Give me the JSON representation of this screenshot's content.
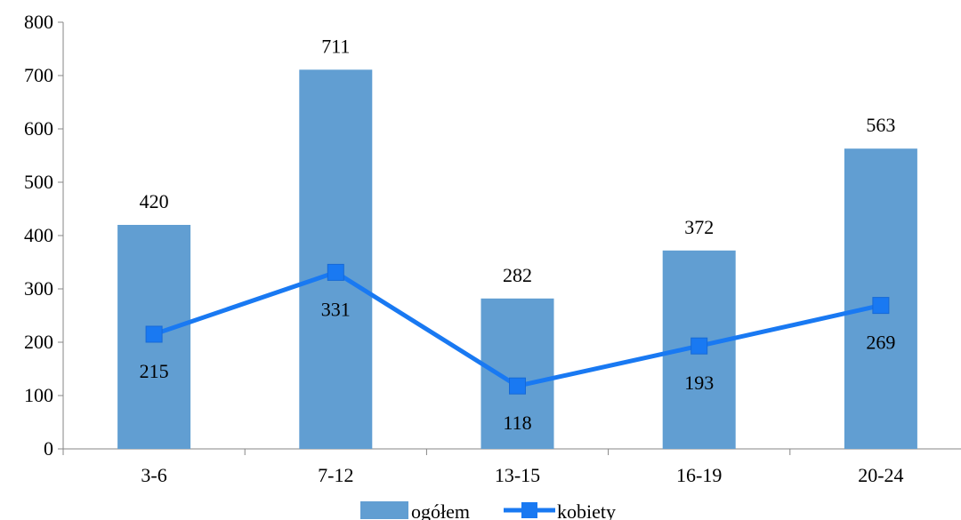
{
  "chart_data": {
    "type": "bar",
    "categories": [
      "3-6",
      "7-12",
      "13-15",
      "16-19",
      "20-24"
    ],
    "series": [
      {
        "name": "ogółem",
        "type": "bar",
        "color": "#619ED2",
        "values": [
          420,
          711,
          282,
          372,
          563
        ]
      },
      {
        "name": "kobiety",
        "type": "line",
        "color": "#1979F2",
        "marker": "square",
        "values": [
          215,
          331,
          118,
          193,
          269
        ]
      }
    ],
    "ylim": [
      0,
      800
    ],
    "yticks": [
      0,
      100,
      200,
      300,
      400,
      500,
      600,
      700,
      800
    ],
    "grid": false,
    "legend_position": "bottom"
  }
}
